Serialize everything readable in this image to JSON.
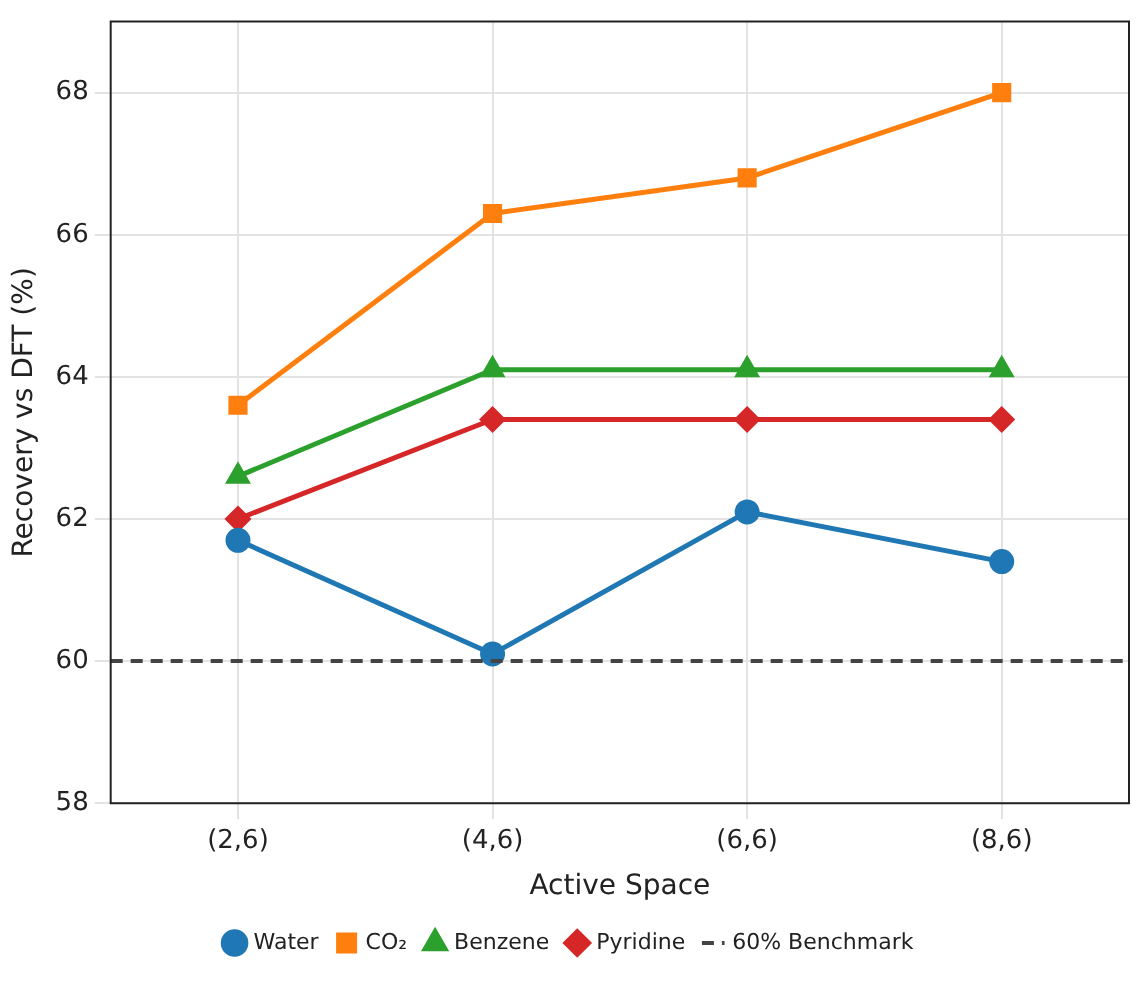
{
  "chart_data": {
    "type": "line",
    "xlabel": "Active Space",
    "ylabel": "Recovery vs DFT (%)",
    "categories": [
      "(2,6)",
      "(4,6)",
      "(6,6)",
      "(8,6)"
    ],
    "series": [
      {
        "name": "Water",
        "color": "#1f77b4",
        "marker": "circle",
        "values": [
          61.7,
          60.1,
          62.1,
          61.4
        ]
      },
      {
        "name": "CO₂",
        "color": "#ff7f0e",
        "marker": "square",
        "values": [
          63.6,
          66.3,
          66.8,
          68.0
        ]
      },
      {
        "name": "Benzene",
        "color": "#2ca02c",
        "marker": "triangle",
        "values": [
          62.6,
          64.1,
          64.1,
          64.1
        ]
      },
      {
        "name": "Pyridine",
        "color": "#d62728",
        "marker": "diamond",
        "values": [
          62.0,
          63.4,
          63.4,
          63.4
        ]
      }
    ],
    "ylim": [
      58,
      69
    ],
    "yticks": [
      58,
      60,
      62,
      64,
      66,
      68
    ],
    "ref_lines": [
      {
        "axis": "y",
        "value": 60,
        "label": "60% Benchmark",
        "color": "#444444",
        "line_style": "dashed"
      }
    ],
    "grid": true,
    "legend": "bottom",
    "line_style": "solid"
  }
}
